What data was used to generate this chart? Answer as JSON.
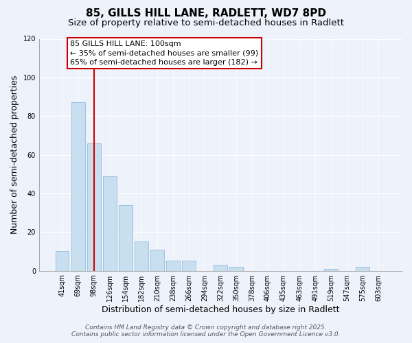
{
  "title": "85, GILLS HILL LANE, RADLETT, WD7 8PD",
  "subtitle": "Size of property relative to semi-detached houses in Radlett",
  "xlabel": "Distribution of semi-detached houses by size in Radlett",
  "ylabel": "Number of semi-detached properties",
  "categories": [
    "41sqm",
    "69sqm",
    "98sqm",
    "126sqm",
    "154sqm",
    "182sqm",
    "210sqm",
    "238sqm",
    "266sqm",
    "294sqm",
    "322sqm",
    "350sqm",
    "378sqm",
    "406sqm",
    "435sqm",
    "463sqm",
    "491sqm",
    "519sqm",
    "547sqm",
    "575sqm",
    "603sqm"
  ],
  "values": [
    10,
    87,
    66,
    49,
    34,
    15,
    11,
    5,
    5,
    0,
    3,
    2,
    0,
    0,
    0,
    0,
    0,
    1,
    0,
    2,
    0
  ],
  "bar_color": "#c8dff0",
  "bar_edge_color": "#a0c0df",
  "vline_x_index": 2,
  "vline_color": "#cc0000",
  "ylim": [
    0,
    120
  ],
  "yticks": [
    0,
    20,
    40,
    60,
    80,
    100,
    120
  ],
  "annotation_line1": "85 GILLS HILL LANE: 100sqm",
  "annotation_line2": "← 35% of semi-detached houses are smaller (99)",
  "annotation_line3": "65% of semi-detached houses are larger (182) →",
  "background_color": "#eef2fb",
  "grid_color": "#ffffff",
  "footer_line1": "Contains HM Land Registry data © Crown copyright and database right 2025.",
  "footer_line2": "Contains public sector information licensed under the Open Government Licence v3.0.",
  "title_fontsize": 11,
  "subtitle_fontsize": 9.5,
  "axis_label_fontsize": 9,
  "tick_fontsize": 7,
  "annotation_fontsize": 8,
  "footer_fontsize": 6.5
}
